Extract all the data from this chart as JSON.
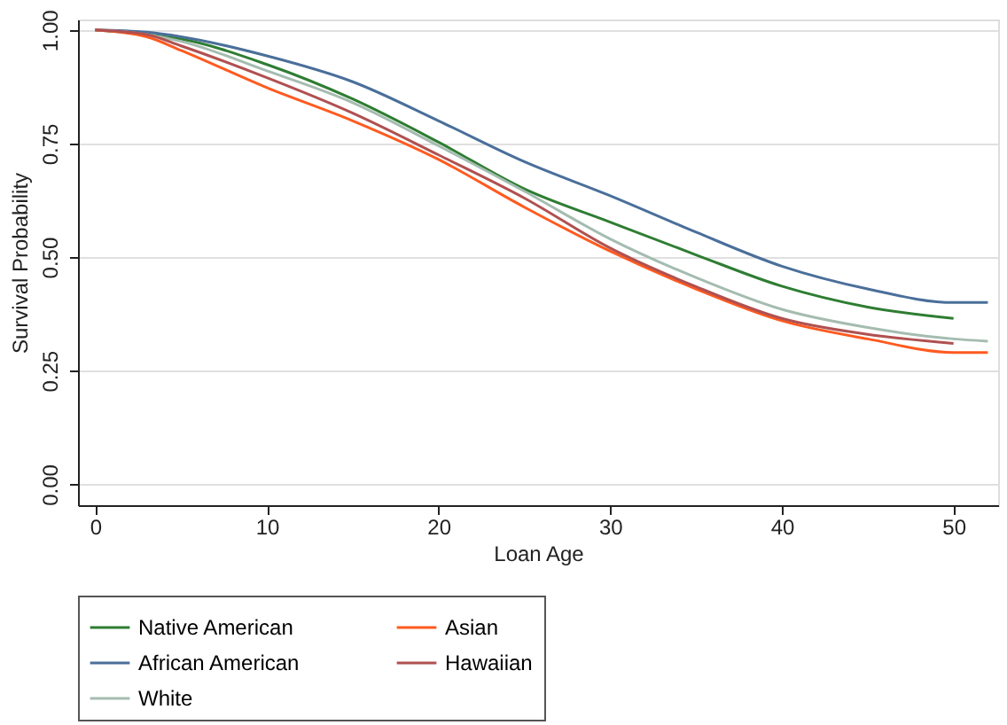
{
  "chart_data": {
    "type": "line",
    "xlabel": "Loan Age",
    "ylabel": "Survival Probability",
    "x": [
      0,
      3,
      5,
      10,
      15,
      20,
      25,
      30,
      35,
      40,
      45,
      50,
      52
    ],
    "series": [
      {
        "name": "Native American",
        "color": "#2e7d32",
        "values": [
          1.0,
          0.99,
          0.98,
          0.924,
          0.848,
          0.753,
          0.65,
          0.577,
          0.505,
          0.436,
          0.39,
          0.365,
          null
        ]
      },
      {
        "name": "African American",
        "color": "#4a6f9a",
        "values": [
          1.0,
          0.995,
          0.985,
          0.943,
          0.886,
          0.8,
          0.71,
          0.635,
          0.555,
          0.48,
          0.43,
          0.4,
          0.4
        ]
      },
      {
        "name": "White",
        "color": "#a5bcb0",
        "values": [
          1.0,
          0.99,
          0.975,
          0.91,
          0.84,
          0.745,
          0.645,
          0.54,
          0.455,
          0.385,
          0.345,
          0.32,
          0.315
        ]
      },
      {
        "name": "Asian",
        "color": "#ff5a1f",
        "values": [
          1.0,
          0.985,
          0.955,
          0.873,
          0.8,
          0.715,
          0.61,
          0.513,
          0.43,
          0.36,
          0.32,
          0.29,
          0.29
        ]
      },
      {
        "name": "Hawaiian",
        "color": "#b05050",
        "values": [
          1.0,
          0.99,
          0.965,
          0.895,
          0.817,
          0.725,
          0.63,
          0.52,
          0.435,
          0.365,
          0.33,
          0.31,
          null
        ]
      }
    ],
    "xlim": [
      -1,
      52.6
    ],
    "xticks": [
      0,
      10,
      20,
      30,
      40,
      50
    ],
    "ylim": [
      -0.046,
      1.023
    ],
    "yticks": [
      {
        "value": 0,
        "label": "0.00"
      },
      {
        "value": 0.25,
        "label": "0.25"
      },
      {
        "value": 0.5,
        "label": "0.50"
      },
      {
        "value": 0.75,
        "label": "0.75"
      },
      {
        "value": 1,
        "label": "1.00"
      }
    ],
    "grid": "y",
    "legend": "bottom",
    "marker": "none",
    "line_style": "solid"
  }
}
